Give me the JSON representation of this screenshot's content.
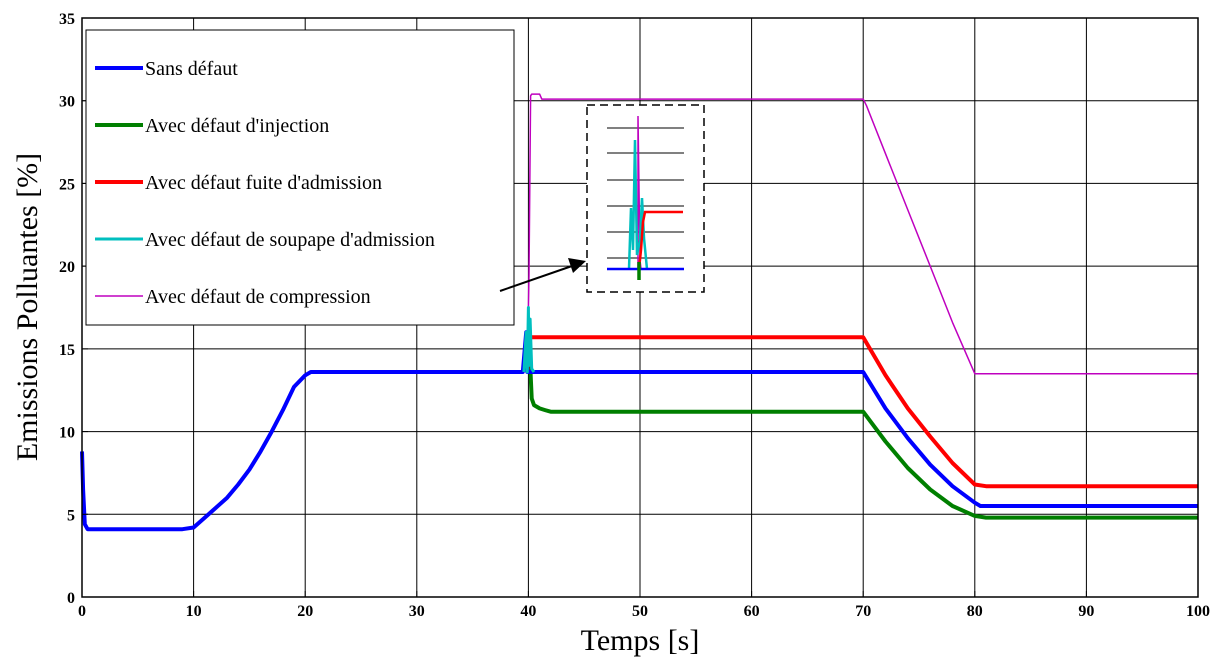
{
  "chart_data": {
    "type": "line",
    "title": "",
    "xlabel": "Temps [s]",
    "ylabel": "Emissions Polluantes [%]",
    "xlim": [
      0,
      100
    ],
    "ylim": [
      0,
      35
    ],
    "xticks": [
      "0",
      "10",
      "20",
      "30",
      "40",
      "50",
      "60",
      "70",
      "80",
      "90",
      "100"
    ],
    "yticks": [
      "0",
      "5",
      "10",
      "15",
      "20",
      "25",
      "30",
      "35"
    ],
    "grid": true,
    "legend_position": "top-left",
    "series": [
      {
        "name": "Sans défaut",
        "color": "#0000ff",
        "x": [
          0,
          0.1,
          0.25,
          0.5,
          1,
          2,
          5,
          9,
          10,
          11,
          12,
          13,
          14,
          15,
          16,
          17,
          18,
          19,
          20,
          20.5,
          21,
          30,
          39.5,
          39.8,
          39.9,
          40,
          70,
          72,
          74,
          76,
          78,
          80,
          80.5,
          90,
          100
        ],
        "y": [
          8.8,
          6.5,
          4.4,
          4.1,
          4.1,
          4.1,
          4.1,
          4.1,
          4.2,
          4.8,
          5.4,
          6.0,
          6.8,
          7.7,
          8.8,
          10.0,
          11.3,
          12.7,
          13.4,
          13.6,
          13.6,
          13.6,
          13.6,
          16.0,
          13.6,
          13.6,
          13.6,
          11.4,
          9.6,
          8.0,
          6.7,
          5.7,
          5.5,
          5.5,
          5.5
        ]
      },
      {
        "name": "Avec défaut d'injection",
        "color": "#007f00",
        "x": [
          39.9,
          40.1,
          40.3,
          40.5,
          41,
          41.5,
          42,
          50,
          60,
          70,
          72,
          74,
          76,
          78,
          80,
          81,
          90,
          100
        ],
        "y": [
          13.6,
          15.0,
          12.0,
          11.6,
          11.4,
          11.3,
          11.2,
          11.2,
          11.2,
          11.2,
          9.4,
          7.8,
          6.5,
          5.5,
          4.9,
          4.8,
          4.8,
          4.8
        ]
      },
      {
        "name": "Avec défaut fuite d'admission",
        "color": "#ff0000",
        "x": [
          39.9,
          40.1,
          40.2,
          50,
          60,
          70,
          72,
          74,
          76,
          78,
          80,
          81,
          90,
          100
        ],
        "y": [
          13.6,
          15.7,
          15.7,
          15.7,
          15.7,
          15.7,
          13.4,
          11.4,
          9.7,
          8.1,
          6.8,
          6.7,
          6.7,
          6.7
        ]
      },
      {
        "name": "Avec défaut de soupape d'admission",
        "color": "#00bfbf",
        "x": [
          39.6,
          39.8,
          39.9,
          40.0,
          40.05,
          40.15,
          40.3,
          40.5
        ],
        "y": [
          13.6,
          16.0,
          13.6,
          17.5,
          14.0,
          16.8,
          13.8,
          13.6
        ]
      },
      {
        "name": "Avec défaut de compression",
        "color": "#bf00bf",
        "x": [
          39.9,
          40.05,
          40.2,
          40.3,
          40.4,
          40.6,
          41,
          41.2,
          50,
          60,
          70,
          70.3,
          72,
          74,
          76,
          78,
          80,
          80.5,
          90,
          100
        ],
        "y": [
          13.6,
          19.5,
          30.3,
          30.4,
          30.4,
          30.4,
          30.4,
          30.1,
          30.1,
          30.1,
          30.1,
          29.7,
          26.8,
          23.4,
          20.0,
          16.6,
          13.5,
          13.5,
          13.5,
          13.5
        ]
      }
    ],
    "inset": {
      "description_position": "near x=50, y=20..28",
      "lines": [
        {
          "color": "#0000ff"
        },
        {
          "color": "#007f00"
        },
        {
          "color": "#ff0000"
        },
        {
          "color": "#00bfbf"
        },
        {
          "color": "#bf00bf"
        }
      ]
    }
  }
}
